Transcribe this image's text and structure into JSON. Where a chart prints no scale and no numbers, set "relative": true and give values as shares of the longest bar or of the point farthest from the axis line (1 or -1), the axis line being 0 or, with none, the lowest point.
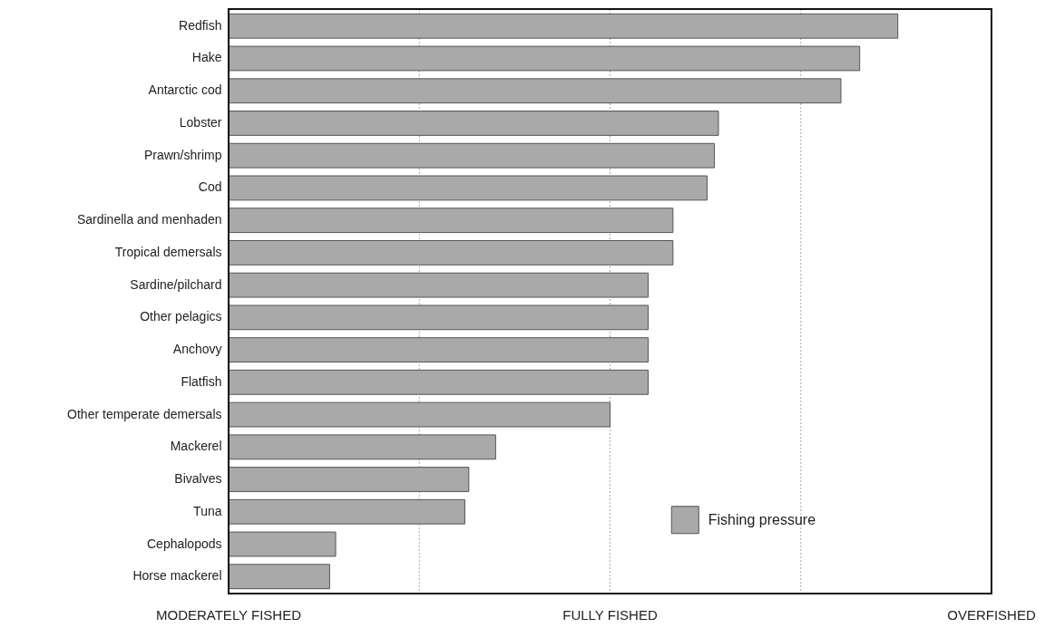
{
  "chart_data": {
    "type": "bar",
    "orientation": "horizontal",
    "relative": true,
    "categories": [
      "Redfish",
      "Hake",
      "Antarctic cod",
      "Lobster",
      "Prawn/shrimp",
      "Cod",
      "Sardinella and menhaden",
      "Tropical demersals",
      "Sardine/pilchard",
      "Other pelagics",
      "Anchovy",
      "Flatfish",
      "Other temperate demersals",
      "Mackerel",
      "Bivalves",
      "Tuna",
      "Cephalopods",
      "Horse mackerel"
    ],
    "series": [
      {
        "name": "Fishing pressure",
        "color": "#a9a9a9",
        "values": [
          1,
          0.943,
          0.915,
          0.732,
          0.726,
          0.715,
          0.664,
          0.664,
          0.627,
          0.627,
          0.627,
          0.627,
          0.57,
          0.399,
          0.359,
          0.353,
          0.16,
          0.151
        ]
      }
    ],
    "annotations": [
      "MODERATELY FISHED",
      "FULLY FISHED",
      "OVERFISHED"
    ],
    "grid": "x",
    "legend": "bottom right"
  }
}
